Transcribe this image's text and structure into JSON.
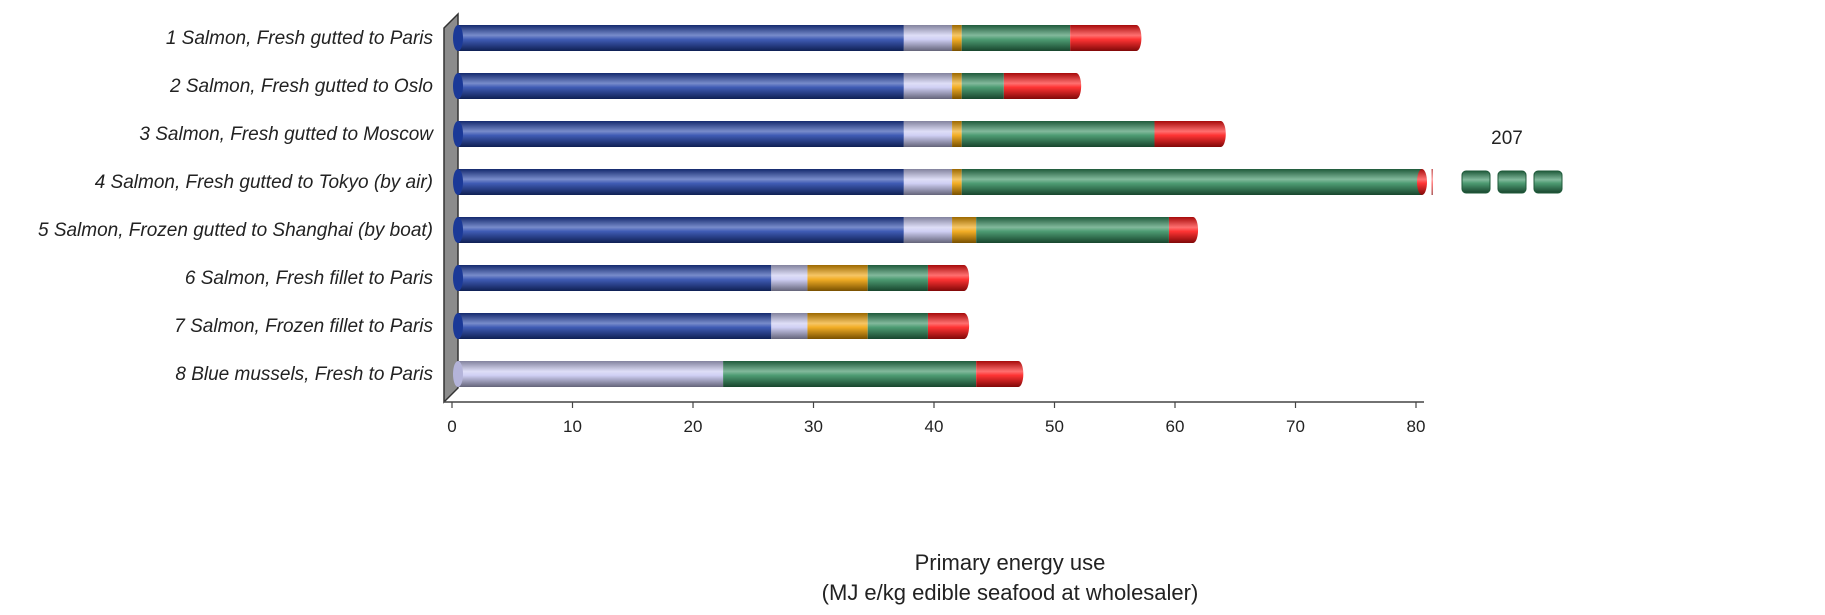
{
  "chart_data": {
    "type": "bar",
    "orientation": "horizontal",
    "stacked": true,
    "categories": [
      "1 Salmon, Fresh gutted to Paris",
      "2 Salmon, Fresh gutted to Oslo",
      "3 Salmon, Fresh gutted to Moscow",
      "4 Salmon, Fresh gutted to Tokyo (by air)",
      "5 Salmon, Frozen gutted to Shanghai (by boat)",
      "6 Salmon, Fresh fillet to Paris",
      "7 Salmon, Frozen fillet to Paris",
      "8 Blue mussels, Fresh to Paris"
    ],
    "series": [
      {
        "color": "#1e3fa8",
        "values": [
          37,
          37,
          37,
          37,
          37,
          26,
          26,
          0
        ]
      },
      {
        "color": "#c8c8f2",
        "values": [
          4,
          4,
          4,
          4,
          4,
          3,
          3,
          22
        ]
      },
      {
        "color": "#f0a000",
        "values": [
          0.8,
          0.8,
          0.8,
          0.8,
          2,
          5,
          5,
          0
        ]
      },
      {
        "color": "#2f8a5a",
        "values": [
          9,
          3.5,
          16,
          39,
          16,
          5,
          5,
          21
        ]
      },
      {
        "color": "#ff1010",
        "values": [
          5.5,
          6,
          5.5,
          0.5,
          2,
          3,
          3,
          3.5
        ]
      }
    ],
    "overflow": {
      "category_index": 3,
      "label": "207"
    },
    "xlabel": "Primary energy use",
    "xlabel_line2": "(MJ e/kg edible seafood at wholesaler)",
    "ylabel": "",
    "xlim": [
      0,
      80
    ],
    "xticks": [
      0,
      10,
      20,
      30,
      40,
      50,
      60,
      70,
      80
    ],
    "grid": false
  }
}
